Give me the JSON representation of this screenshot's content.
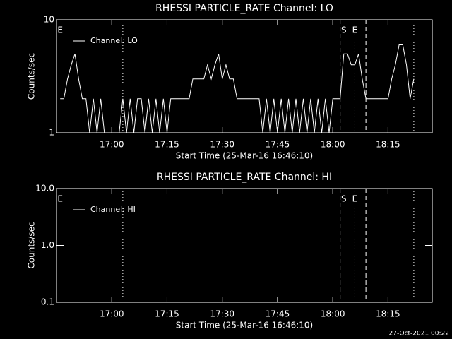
{
  "chart_data": [
    {
      "type": "line",
      "title": "RHESSI PARTICLE_RATE Channel: LO",
      "xlabel": "Start Time (25-Mar-16 16:46:10)",
      "ylabel": "Counts/sec",
      "x": [
        "16:46",
        "16:47",
        "16:48",
        "16:49",
        "16:50",
        "16:51",
        "16:52",
        "16:53",
        "16:54",
        "16:55",
        "16:56",
        "16:57",
        "16:58",
        "16:59",
        "17:00",
        "17:01",
        "17:02",
        "17:03",
        "17:04",
        "17:05",
        "17:06",
        "17:07",
        "17:08",
        "17:09",
        "17:10",
        "17:11",
        "17:12",
        "17:13",
        "17:14",
        "17:15",
        "17:16",
        "17:17",
        "17:18",
        "17:19",
        "17:20",
        "17:21",
        "17:22",
        "17:23",
        "17:24",
        "17:25",
        "17:26",
        "17:27",
        "17:28",
        "17:29",
        "17:30",
        "17:31",
        "17:32",
        "17:33",
        "17:34",
        "17:35",
        "17:36",
        "17:37",
        "17:38",
        "17:39",
        "17:40",
        "17:41",
        "17:42",
        "17:43",
        "17:44",
        "17:45",
        "17:46",
        "17:47",
        "17:48",
        "17:49",
        "17:50",
        "17:51",
        "17:52",
        "17:53",
        "17:54",
        "17:55",
        "17:56",
        "17:57",
        "17:58",
        "17:59",
        "18:00",
        "18:01",
        "18:02",
        "18:03",
        "18:04",
        "18:05",
        "18:06",
        "18:07",
        "18:08",
        "18:09",
        "18:10",
        "18:11",
        "18:12",
        "18:13",
        "18:14",
        "18:15",
        "18:16",
        "18:17",
        "18:18",
        "18:19",
        "18:20",
        "18:21",
        "18:22"
      ],
      "series": [
        {
          "name": "Channel: LO",
          "color": "#ffffff",
          "values": [
            2,
            2,
            3,
            4,
            5,
            3,
            2,
            2,
            1,
            2,
            1,
            2,
            1,
            1,
            1,
            1,
            1,
            2,
            1,
            2,
            1,
            2,
            2,
            1,
            2,
            1,
            2,
            1,
            2,
            1,
            2,
            2,
            2,
            2,
            2,
            2,
            3,
            3,
            3,
            3,
            4,
            3,
            4,
            5,
            3,
            4,
            3,
            3,
            2,
            2,
            2,
            2,
            2,
            2,
            2,
            1,
            2,
            1,
            2,
            1,
            2,
            1,
            2,
            1,
            2,
            1,
            2,
            1,
            2,
            1,
            2,
            1,
            2,
            1,
            2,
            2,
            2,
            5,
            5,
            4,
            4,
            5,
            3,
            2,
            2,
            2,
            2,
            2,
            2,
            2,
            3,
            4,
            6,
            6,
            4,
            2,
            3
          ]
        }
      ],
      "xlim": [
        "16:45",
        "18:27"
      ],
      "xticks": [
        "17:00",
        "17:15",
        "17:30",
        "17:45",
        "18:00",
        "18:15"
      ],
      "ylim": [
        1,
        10
      ],
      "yticks": [
        1,
        10
      ],
      "log_y": true,
      "legend": "upper left",
      "markers": [
        {
          "x": "17:03",
          "style": "dotted"
        },
        {
          "x": "18:02",
          "style": "dashed"
        },
        {
          "x": "18:06",
          "style": "dotted"
        },
        {
          "x": "18:09",
          "style": "dashed"
        },
        {
          "x": "18:22",
          "style": "dotted"
        }
      ],
      "annotations": [
        {
          "text": "E",
          "x": "16:46"
        },
        {
          "text": "S",
          "x": "18:03"
        },
        {
          "text": "E",
          "x": "18:06"
        }
      ]
    },
    {
      "type": "line",
      "title": "RHESSI PARTICLE_RATE Channel: HI",
      "xlabel": "Start Time (25-Mar-16 16:46:10)",
      "ylabel": "Counts/sec",
      "x": [],
      "series": [
        {
          "name": "Channel: HI",
          "color": "#ffffff",
          "values": []
        }
      ],
      "xlim": [
        "16:45",
        "18:27"
      ],
      "xticks": [
        "17:00",
        "17:15",
        "17:30",
        "17:45",
        "18:00",
        "18:15"
      ],
      "ylim": [
        0.1,
        10
      ],
      "yticks": [
        0.1,
        {
          "value": 1,
          "label": "1.0"
        },
        {
          "value": 10,
          "label": "10.0"
        }
      ],
      "log_y": true,
      "legend": "upper left",
      "markers": [
        {
          "x": "17:03",
          "style": "dotted"
        },
        {
          "x": "18:02",
          "style": "dashed"
        },
        {
          "x": "18:06",
          "style": "dotted"
        },
        {
          "x": "18:09",
          "style": "dashed"
        },
        {
          "x": "18:22",
          "style": "dotted"
        }
      ],
      "annotations": [
        {
          "text": "E",
          "x": "16:46"
        },
        {
          "text": "S",
          "x": "18:03"
        },
        {
          "text": "E",
          "x": "18:06"
        }
      ]
    }
  ],
  "footer": "27-Oct-2021 00:22"
}
